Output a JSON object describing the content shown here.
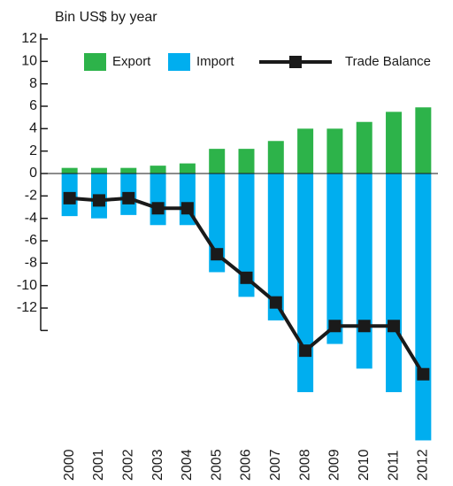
{
  "chart_data": {
    "type": "bar",
    "title": "Bin US$ by year",
    "categories": [
      "2000",
      "2001",
      "2002",
      "2003",
      "2004",
      "2005",
      "2006",
      "2007",
      "2008",
      "2009",
      "2010",
      "2011",
      "2012"
    ],
    "series": [
      {
        "name": "Export",
        "color": "#2db34a",
        "values": [
          0.5,
          0.5,
          0.5,
          0.7,
          0.9,
          2.2,
          2.2,
          2.9,
          4.0,
          4.0,
          4.6,
          5.5,
          5.9
        ]
      },
      {
        "name": "Import",
        "color": "#00aeef",
        "values": [
          -3.8,
          -4.0,
          -3.7,
          -4.6,
          -4.6,
          -8.8,
          -11.0,
          -13.1,
          -19.5,
          -15.2,
          -17.4,
          -19.5,
          -23.8
        ]
      },
      {
        "name": "Trade Balance",
        "color": "#1a1a1a",
        "type": "line",
        "values": [
          -2.2,
          -2.4,
          -2.2,
          -3.1,
          -3.1,
          -7.2,
          -9.3,
          -11.5,
          -15.8,
          -13.6,
          -13.6,
          -13.6,
          -17.9
        ]
      }
    ],
    "ylim": [
      -24,
      12
    ],
    "yticks": [
      12,
      10,
      8,
      6,
      4,
      2,
      0,
      -2,
      -4,
      -6,
      -8,
      -10,
      -12
    ]
  }
}
